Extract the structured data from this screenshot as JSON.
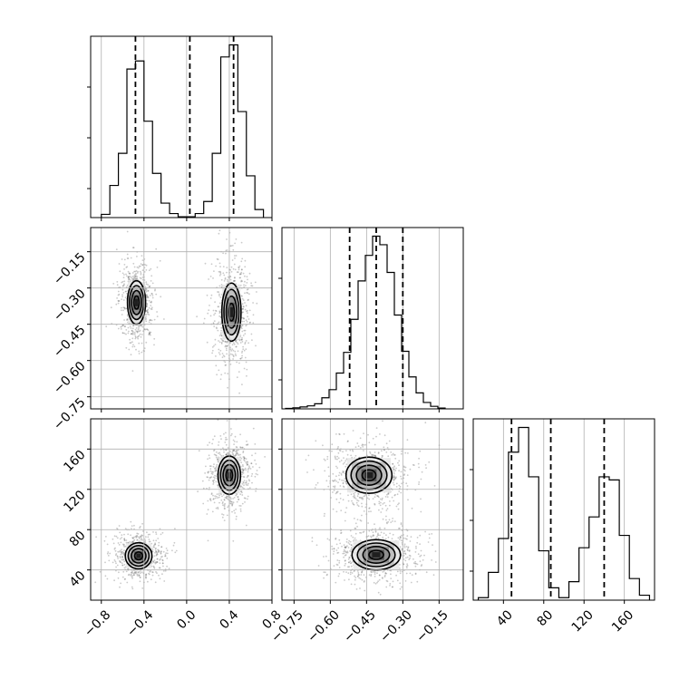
{
  "chart_data": {
    "type": "corner",
    "parameters": [
      {
        "id": "p0",
        "range": [
          -0.9,
          0.8
        ],
        "ticks": [
          -0.8,
          -0.4,
          0.0,
          0.4,
          0.8
        ],
        "tick_labels": [
          "−0.8",
          "−0.4",
          "0.0",
          "0.4",
          "0.8"
        ],
        "histogram": {
          "bin_edges": [
            -0.8,
            -0.72,
            -0.64,
            -0.56,
            -0.48,
            -0.4,
            -0.32,
            -0.24,
            -0.16,
            -0.08,
            0.0,
            0.08,
            0.16,
            0.24,
            0.32,
            0.4,
            0.48,
            0.56,
            0.64,
            0.72
          ],
          "counts": [
            4,
            40,
            80,
            185,
            195,
            120,
            55,
            18,
            5,
            1,
            1,
            5,
            20,
            80,
            200,
            215,
            132,
            52,
            10
          ]
        },
        "quantiles": [
          -0.48,
          0.03,
          0.44
        ]
      },
      {
        "id": "p1",
        "range": [
          -0.8,
          -0.05
        ],
        "ticks": [
          -0.75,
          -0.6,
          -0.45,
          -0.3,
          -0.15
        ],
        "tick_labels": [
          "−0.75",
          "−0.60",
          "−0.45",
          "−0.30",
          "−0.15"
        ],
        "histogram": {
          "bin_edges": [
            -0.785,
            -0.755,
            -0.725,
            -0.695,
            -0.665,
            -0.635,
            -0.605,
            -0.575,
            -0.545,
            -0.515,
            -0.485,
            -0.455,
            -0.425,
            -0.395,
            -0.365,
            -0.335,
            -0.305,
            -0.275,
            -0.245,
            -0.215,
            -0.185,
            -0.155,
            -0.125
          ],
          "counts": [
            2,
            5,
            9,
            14,
            24,
            52,
            90,
            168,
            265,
            420,
            600,
            720,
            810,
            770,
            640,
            440,
            270,
            150,
            75,
            30,
            12,
            4
          ]
        },
        "quantiles": [
          -0.52,
          -0.41,
          -0.3
        ]
      },
      {
        "id": "p2",
        "range": [
          10,
          190
        ],
        "ticks": [
          40,
          80,
          120,
          160
        ],
        "tick_labels": [
          "40",
          "80",
          "120",
          "160"
        ],
        "histogram": {
          "bin_edges": [
            15,
            25,
            35,
            45,
            55,
            65,
            75,
            85,
            95,
            105,
            115,
            125,
            135,
            145,
            155,
            165,
            175,
            185
          ],
          "counts": [
            4,
            45,
            100,
            240,
            280,
            200,
            80,
            20,
            4,
            30,
            85,
            135,
            200,
            195,
            105,
            35,
            8
          ]
        },
        "quantiles": [
          48,
          87,
          140
        ]
      }
    ],
    "panels_2d": [
      {
        "x": "p0",
        "y": "p1",
        "clusters": [
          {
            "center": [
              -0.47,
              -0.36
            ],
            "radius": [
              0.17,
              0.18
            ],
            "levels": [
              0.3,
              0.55,
              0.78,
              1.0
            ]
          },
          {
            "center": [
              0.42,
              -0.4
            ],
            "radius": [
              0.18,
              0.24
            ],
            "levels": [
              0.3,
              0.55,
              0.78,
              1.0
            ]
          }
        ]
      },
      {
        "x": "p0",
        "y": "p2",
        "clusters": [
          {
            "center": [
              -0.45,
              54
            ],
            "radius": [
              0.25,
              26
            ],
            "levels": [
              0.3,
              0.55,
              0.78,
              1.0
            ]
          },
          {
            "center": [
              0.4,
              134
            ],
            "radius": [
              0.21,
              38
            ],
            "levels": [
              0.3,
              0.55,
              0.78,
              1.0
            ]
          }
        ]
      },
      {
        "x": "p1",
        "y": "p2",
        "clusters": [
          {
            "center": [
              -0.44,
              134
            ],
            "radius": [
              0.19,
              36
            ],
            "levels": [
              0.3,
              0.55,
              0.78,
              1.0
            ]
          },
          {
            "center": [
              -0.41,
              55
            ],
            "radius": [
              0.2,
              30
            ],
            "levels": [
              0.3,
              0.55,
              0.78,
              1.0
            ]
          }
        ]
      }
    ],
    "grid": true,
    "xlabel": "",
    "ylabel": "",
    "title": ""
  }
}
